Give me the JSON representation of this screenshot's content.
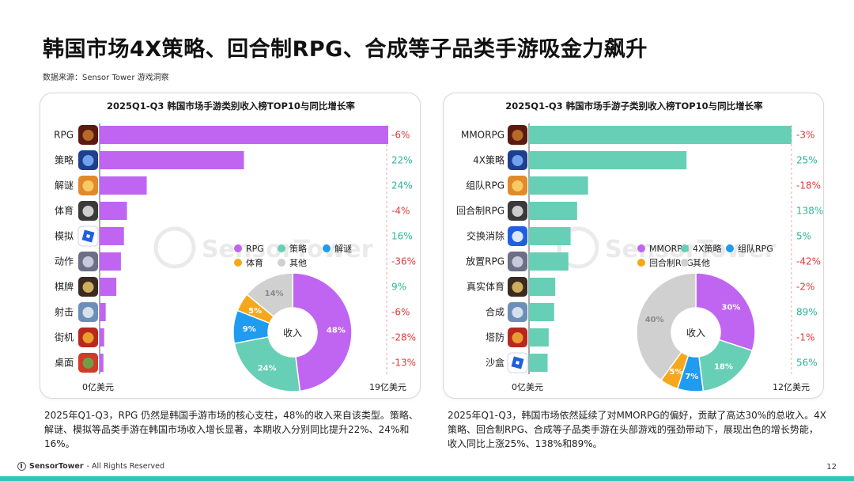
{
  "page": {
    "title": "韩国市场4X策略、回合制RPG、合成等子品类手游吸金力飙升",
    "source": "数据来源：Sensor Tower 游戏洞察",
    "footer_brand": "SensorTower",
    "footer_rights": " - All Rights Reserved",
    "page_number": "12",
    "watermark": "SensorTower"
  },
  "colors": {
    "purple": "#c065f2",
    "teal": "#66cfb6",
    "blue": "#1f9bf0",
    "orange": "#f6a81c",
    "gray": "#d0d0d0",
    "negative": "#e03a3a",
    "positive": "#2bb597"
  },
  "chart_data": [
    {
      "type": "bar",
      "title": "2025Q1-Q3 韩国市场手游类别收入榜TOP10与同比增长率",
      "bar_color": "purple",
      "categories": [
        "RPG",
        "策略",
        "解谜",
        "体育",
        "模拟",
        "动作",
        "棋牌",
        "射击",
        "街机",
        "桌面"
      ],
      "values": [
        19.0,
        9.5,
        3.1,
        1.8,
        1.6,
        1.4,
        1.1,
        0.4,
        0.3,
        0.25
      ],
      "growth": [
        "-6%",
        "22%",
        "24%",
        "-4%",
        "16%",
        "-36%",
        "9%",
        "-6%",
        "-28%",
        "-13%"
      ],
      "icons": [
        "rpg-game-icon",
        "strategy-game-icon",
        "puzzle-game-icon",
        "sports-game-icon",
        "roblox-icon",
        "action-game-icon",
        "card-game-icon",
        "shooter-game-icon",
        "arcade-game-icon",
        "board-game-icon"
      ],
      "axis_min_label": "0亿美元",
      "axis_max_label": "19亿美元",
      "xlim": [
        0,
        19
      ],
      "donut": {
        "center_label": "收入",
        "legend": [
          {
            "name": "RPG",
            "color": "purple"
          },
          {
            "name": "策略",
            "color": "teal"
          },
          {
            "name": "解谜",
            "color": "blue"
          },
          {
            "name": "体育",
            "color": "orange"
          },
          {
            "name": "其他",
            "color": "gray"
          }
        ],
        "slices": [
          {
            "name": "RPG",
            "value": 48,
            "label": "48%",
            "color": "purple"
          },
          {
            "name": "策略",
            "value": 24,
            "label": "24%",
            "color": "teal"
          },
          {
            "name": "解谜",
            "value": 9,
            "label": "9%",
            "color": "blue"
          },
          {
            "name": "体育",
            "value": 5,
            "label": "5%",
            "color": "orange"
          },
          {
            "name": "其他",
            "value": 14,
            "label": "14%",
            "color": "gray"
          }
        ]
      }
    },
    {
      "type": "bar",
      "title": "2025Q1-Q3 韩国市场手游子类别收入榜TOP10与同比增长率",
      "bar_color": "teal",
      "categories": [
        "MMORPG",
        "4X策略",
        "组队RPG",
        "回合制RPG",
        "交换消除",
        "放置RPG",
        "真实体育",
        "合成",
        "塔防",
        "沙盒"
      ],
      "values": [
        12.0,
        7.2,
        2.7,
        2.2,
        1.9,
        1.8,
        1.2,
        1.15,
        0.9,
        0.85
      ],
      "growth": [
        "-3%",
        "25%",
        "-18%",
        "138%",
        "5%",
        "-42%",
        "-2%",
        "89%",
        "-1%",
        "56%"
      ],
      "icons": [
        "mmorpg-game-icon",
        "4x-strategy-game-icon",
        "squad-rpg-game-icon",
        "turn-based-rpg-game-icon",
        "match-three-game-icon",
        "idle-rpg-game-icon",
        "real-sports-game-icon",
        "merge-game-icon",
        "tower-defense-game-icon",
        "roblox-icon"
      ],
      "axis_min_label": "0亿美元",
      "axis_max_label": "12亿美元",
      "xlim": [
        0,
        12
      ],
      "donut": {
        "center_label": "收入",
        "legend": [
          {
            "name": "MMORPG",
            "color": "purple"
          },
          {
            "name": "4X策略",
            "color": "teal"
          },
          {
            "name": "组队RPG",
            "color": "blue"
          },
          {
            "name": "回合制RPG",
            "color": "orange"
          },
          {
            "name": "其他",
            "color": "gray"
          }
        ],
        "slices": [
          {
            "name": "MMORPG",
            "value": 30,
            "label": "30%",
            "color": "purple"
          },
          {
            "name": "4X策略",
            "value": 18,
            "label": "18%",
            "color": "teal"
          },
          {
            "name": "组队RPG",
            "value": 7,
            "label": "7%",
            "color": "blue"
          },
          {
            "name": "回合制RPG",
            "value": 5,
            "label": "5%",
            "color": "orange"
          },
          {
            "name": "其他",
            "value": 40,
            "label": "40%",
            "color": "gray"
          }
        ]
      }
    }
  ],
  "descriptions": {
    "left": "2025年Q1-Q3，RPG 仍然是韩国手游市场的核心支柱，48%的收入来自该类型。策略、解谜、模拟等品类手游在韩国市场收入增长显著，本期收入分别同比提升22%、24%和16%。",
    "right": "2025年Q1-Q3，韩国市场依然延续了对MMORPG的偏好，贡献了高达30%的总收入。4X策略、回合制RPG、合成等子品类手游在头部游戏的强劲带动下，展现出色的增长势能，收入同比上涨25%、138%和89%。"
  }
}
